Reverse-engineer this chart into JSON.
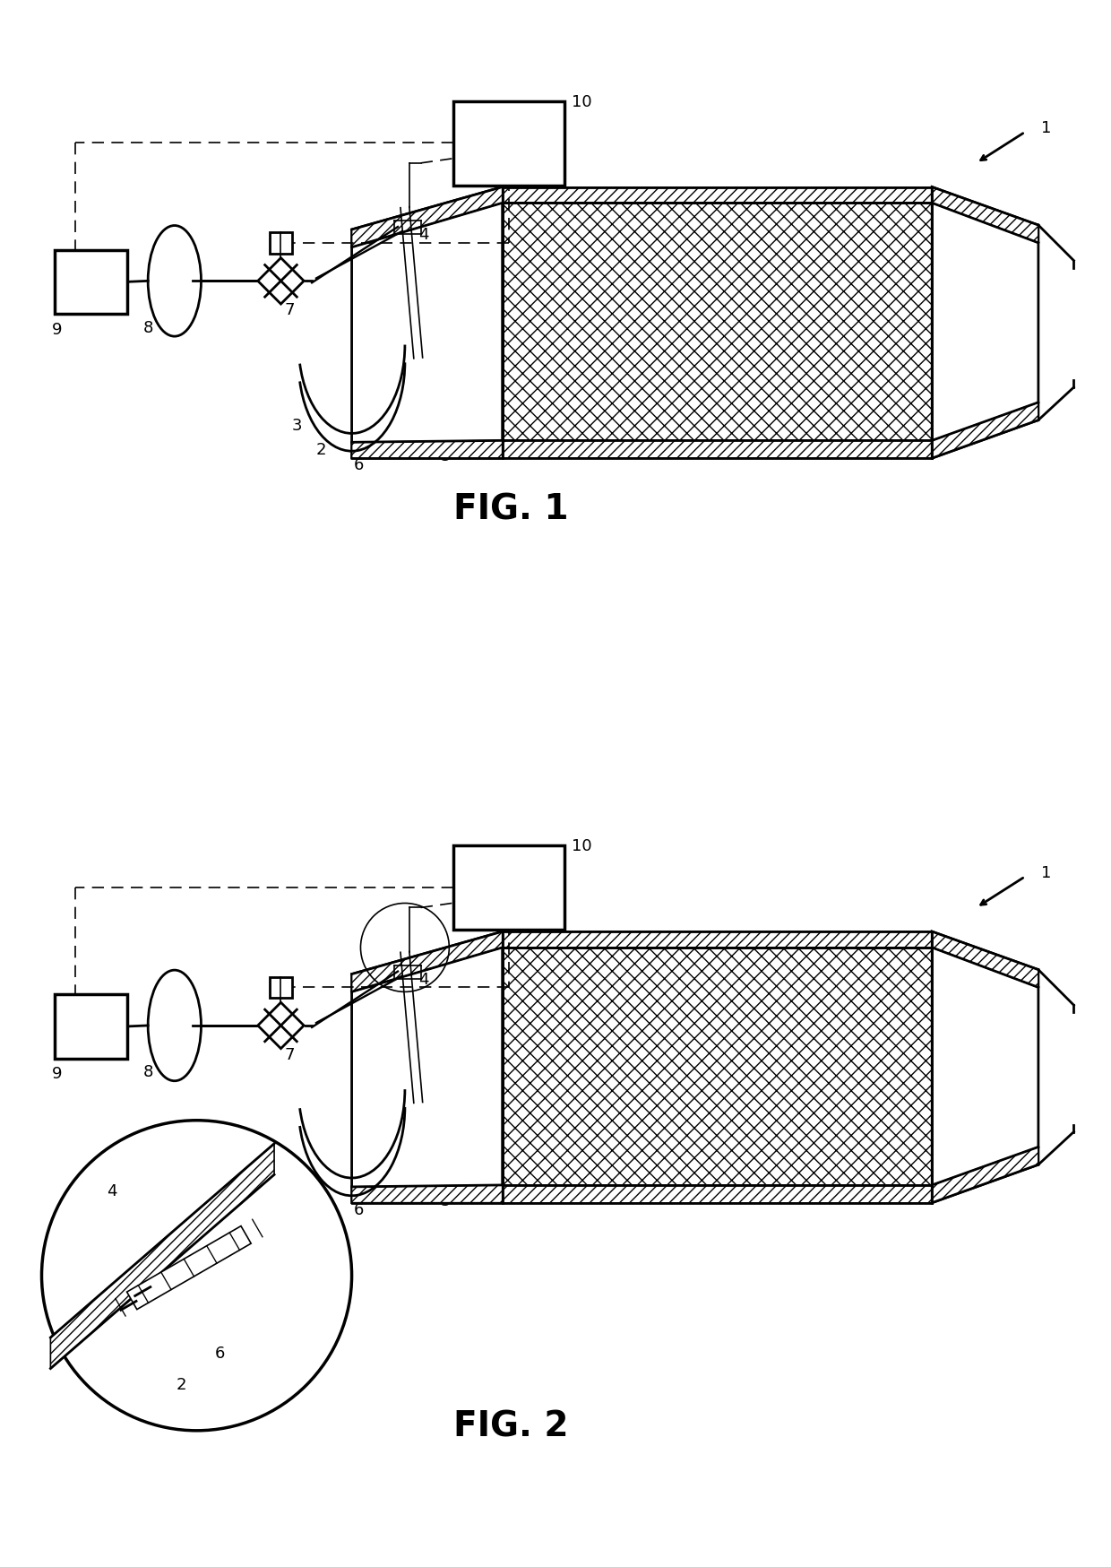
{
  "bg_color": "#ffffff",
  "line_color": "#000000",
  "fig_width": 12.4,
  "fig_height": 17.49,
  "lw_main": 2.0,
  "lw_thin": 1.2,
  "lw_thick": 2.5,
  "label_fontsize": 13,
  "fig_label_fontsize": 28,
  "fig1_title": "FIG. 1",
  "fig2_title": "FIG. 2",
  "hatch_density": "xx"
}
